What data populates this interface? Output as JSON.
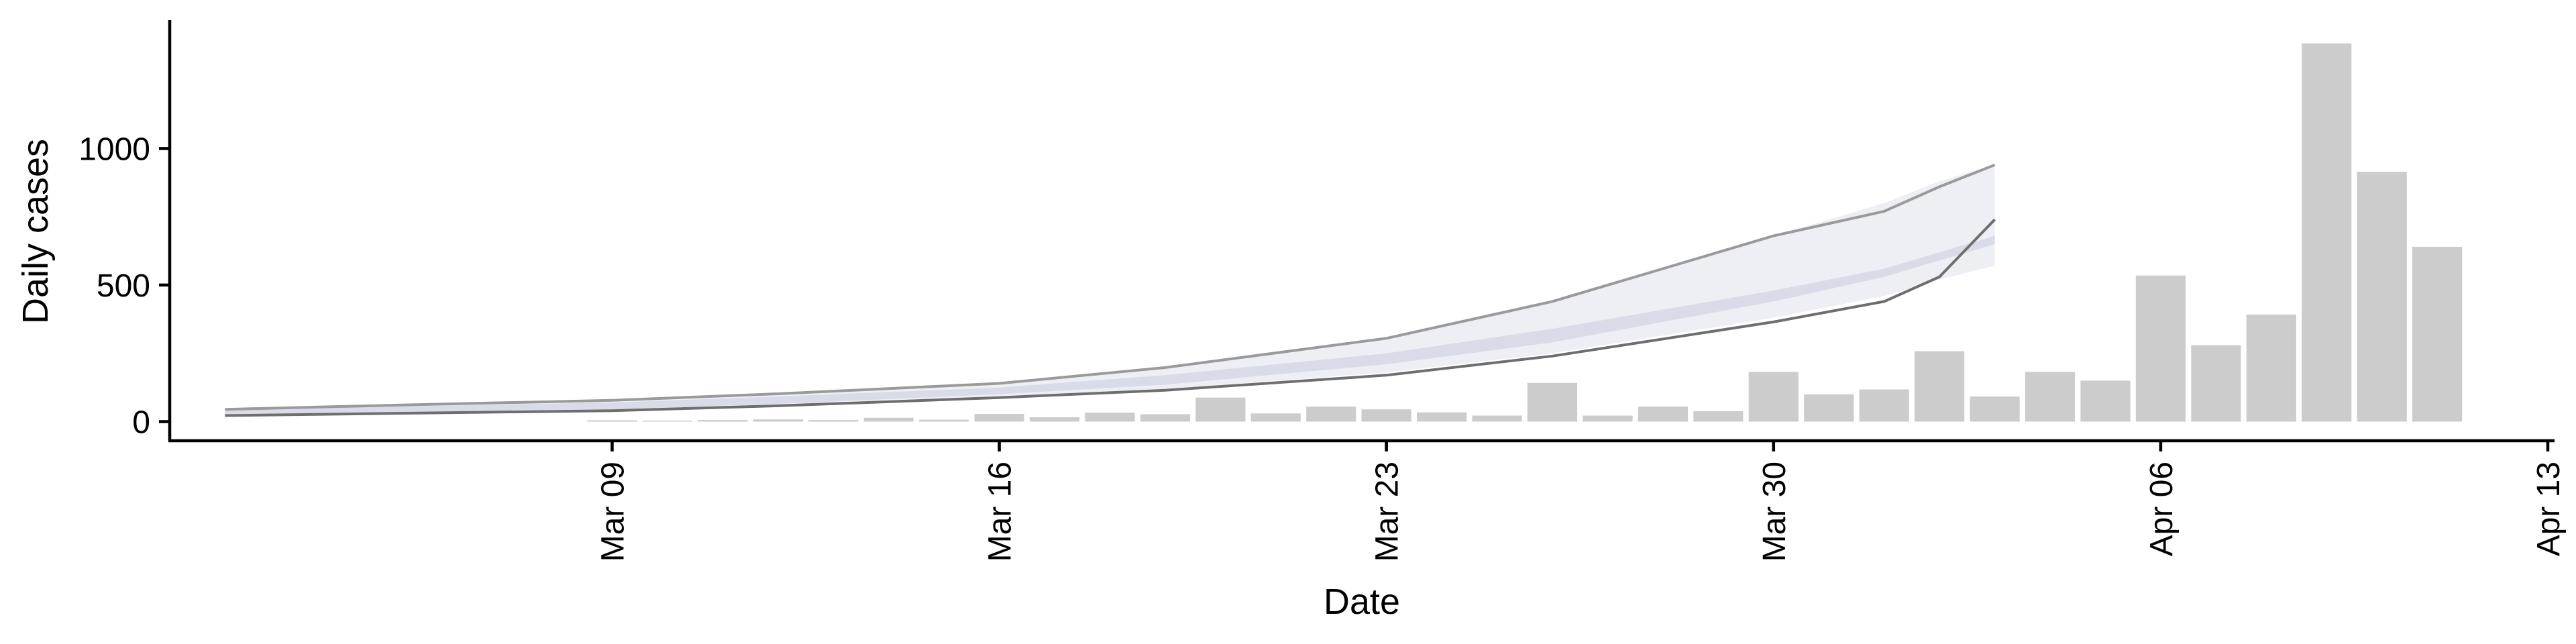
{
  "chart_data": {
    "type": "bar",
    "xlabel": "Date",
    "ylabel": "Daily cases",
    "x_ticks": [
      "Mar 09",
      "Mar 16",
      "Mar 23",
      "Mar 30",
      "Apr 06",
      "Apr 13"
    ],
    "x_range": [
      "2020-03-01",
      "2020-04-13"
    ],
    "y_ticks": [
      0,
      500,
      1000
    ],
    "ylim": [
      -70,
      1470
    ],
    "grid": false,
    "legend": "none",
    "colors": {
      "bars": "#cccccc",
      "ribbon_inner": "#d9dce8",
      "ribbon_outer": "#eeeff4",
      "line_upper": "#9a9a9a",
      "line_lower": "#6e6e6e"
    },
    "bar_series": {
      "dates": [
        "2020-03-09",
        "2020-03-10",
        "2020-03-11",
        "2020-03-12",
        "2020-03-13",
        "2020-03-14",
        "2020-03-15",
        "2020-03-16",
        "2020-03-17",
        "2020-03-18",
        "2020-03-19",
        "2020-03-20",
        "2020-03-21",
        "2020-03-22",
        "2020-03-23",
        "2020-03-24",
        "2020-03-25",
        "2020-03-26",
        "2020-03-27",
        "2020-03-28",
        "2020-03-29",
        "2020-03-30",
        "2020-03-31",
        "2020-04-01",
        "2020-04-02",
        "2020-04-03",
        "2020-04-04",
        "2020-04-05",
        "2020-04-06",
        "2020-04-07",
        "2020-04-08",
        "2020-04-09",
        "2020-04-10",
        "2020-04-11"
      ],
      "values": [
        5,
        4,
        6,
        8,
        6,
        14,
        7,
        28,
        16,
        33,
        27,
        88,
        30,
        55,
        45,
        34,
        22,
        142,
        22,
        55,
        38,
        182,
        100,
        118,
        258,
        92,
        182,
        150,
        535,
        280,
        392,
        1385,
        915,
        640
      ]
    },
    "band_series": {
      "dates": [
        "2020-03-02",
        "2020-03-05",
        "2020-03-09",
        "2020-03-12",
        "2020-03-16",
        "2020-03-19",
        "2020-03-23",
        "2020-03-26",
        "2020-03-30",
        "2020-04-01",
        "2020-04-02",
        "2020-04-03"
      ],
      "upper": [
        42,
        55,
        70,
        92,
        125,
        170,
        250,
        340,
        480,
        560,
        620,
        680
      ],
      "upper_outer": [
        45,
        60,
        78,
        102,
        140,
        198,
        305,
        440,
        680,
        800,
        880,
        940
      ],
      "lower": [
        25,
        32,
        45,
        65,
        100,
        135,
        210,
        290,
        440,
        530,
        590,
        650
      ],
      "lower_outer": [
        22,
        30,
        40,
        60,
        92,
        120,
        180,
        250,
        380,
        460,
        520,
        570
      ],
      "line_upper": [
        45,
        60,
        78,
        102,
        140,
        198,
        305,
        440,
        680,
        770,
        860,
        940
      ],
      "line_lower": [
        22,
        30,
        40,
        58,
        88,
        115,
        170,
        240,
        365,
        440,
        530,
        740
      ]
    }
  }
}
